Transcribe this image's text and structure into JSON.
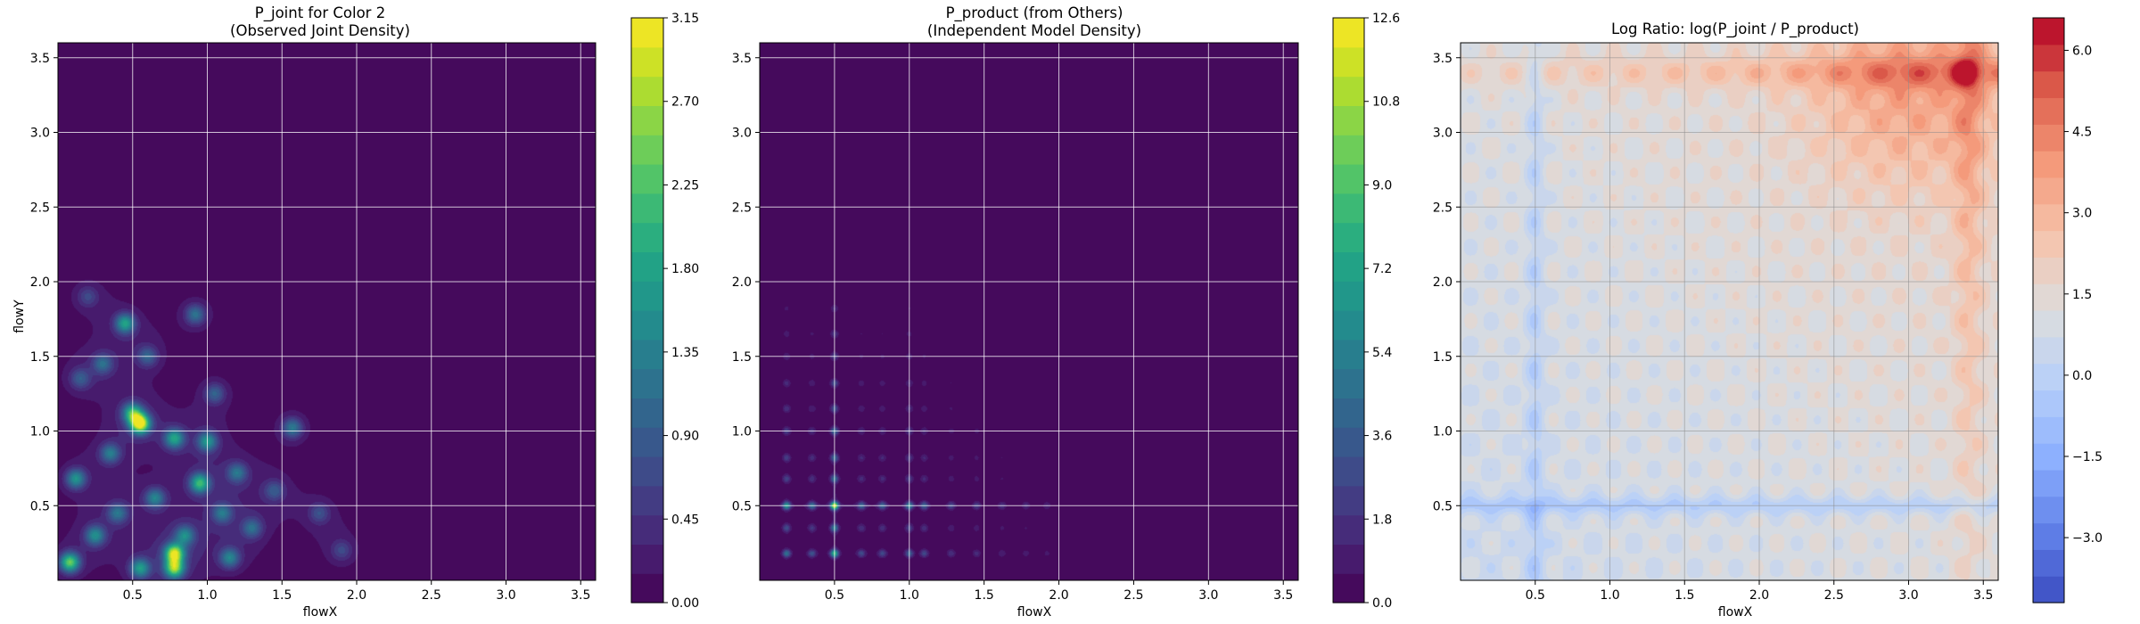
{
  "chart_data": [
    {
      "type": "heatmap",
      "title": [
        "P_joint for Color 2",
        "(Observed Joint Density)"
      ],
      "xlabel": "flowX",
      "ylabel": "flowY",
      "xlim": [
        0.0,
        3.6
      ],
      "ylim": [
        0.0,
        3.6
      ],
      "x_ticks": [
        0.5,
        1.0,
        1.5,
        2.0,
        2.5,
        3.0,
        3.5
      ],
      "y_ticks": [
        0.5,
        1.0,
        1.5,
        2.0,
        2.5,
        3.0,
        3.5
      ],
      "grid": true,
      "colormap": "viridis",
      "colorbar": {
        "min": 0.0,
        "max": 3.15,
        "ticks": [
          0.0,
          0.45,
          0.9,
          1.35,
          1.8,
          2.25,
          2.7,
          3.15
        ],
        "tick_labels": [
          "0.00",
          "0.45",
          "0.90",
          "1.35",
          "1.80",
          "2.25",
          "2.70",
          "3.15"
        ]
      },
      "peaks": [
        {
          "x": 0.55,
          "y": 1.05,
          "value": 3.1
        },
        {
          "x": 0.08,
          "y": 0.12,
          "value": 2.2
        },
        {
          "x": 0.78,
          "y": 0.18,
          "value": 2.6
        },
        {
          "x": 0.78,
          "y": 0.08,
          "value": 2.3
        },
        {
          "x": 0.5,
          "y": 1.12,
          "value": 1.8
        },
        {
          "x": 0.45,
          "y": 1.72,
          "value": 1.6
        },
        {
          "x": 0.95,
          "y": 0.65,
          "value": 1.9
        },
        {
          "x": 1.0,
          "y": 0.93,
          "value": 1.4
        },
        {
          "x": 0.78,
          "y": 0.95,
          "value": 1.6
        },
        {
          "x": 0.12,
          "y": 0.68,
          "value": 1.4
        },
        {
          "x": 0.25,
          "y": 0.3,
          "value": 1.3
        },
        {
          "x": 0.55,
          "y": 0.08,
          "value": 1.5
        },
        {
          "x": 1.2,
          "y": 0.72,
          "value": 1.0
        },
        {
          "x": 1.15,
          "y": 0.15,
          "value": 1.2
        },
        {
          "x": 0.92,
          "y": 1.78,
          "value": 1.0
        },
        {
          "x": 1.57,
          "y": 1.02,
          "value": 1.1
        },
        {
          "x": 1.3,
          "y": 0.35,
          "value": 0.9
        },
        {
          "x": 0.35,
          "y": 0.85,
          "value": 1.1
        },
        {
          "x": 0.65,
          "y": 0.55,
          "value": 1.2
        },
        {
          "x": 0.3,
          "y": 1.45,
          "value": 0.9
        },
        {
          "x": 1.05,
          "y": 1.25,
          "value": 0.8
        },
        {
          "x": 0.15,
          "y": 1.35,
          "value": 0.7
        },
        {
          "x": 1.45,
          "y": 0.6,
          "value": 0.7
        },
        {
          "x": 0.4,
          "y": 0.45,
          "value": 1.0
        },
        {
          "x": 0.85,
          "y": 0.3,
          "value": 1.2
        },
        {
          "x": 1.75,
          "y": 0.45,
          "value": 0.6
        },
        {
          "x": 0.2,
          "y": 1.9,
          "value": 0.5
        },
        {
          "x": 1.9,
          "y": 0.2,
          "value": 0.5
        },
        {
          "x": 0.6,
          "y": 1.5,
          "value": 0.8
        },
        {
          "x": 1.1,
          "y": 0.45,
          "value": 1.0
        }
      ]
    },
    {
      "type": "heatmap",
      "title": [
        "P_product (from Others)",
        "(Independent Model Density)"
      ],
      "xlabel": "flowX",
      "ylabel": "",
      "xlim": [
        0.0,
        3.6
      ],
      "ylim": [
        0.0,
        3.6
      ],
      "x_ticks": [
        0.5,
        1.0,
        1.5,
        2.0,
        2.5,
        3.0,
        3.5
      ],
      "y_ticks": [
        0.5,
        1.0,
        1.5,
        2.0,
        2.5,
        3.0,
        3.5
      ],
      "grid": true,
      "colormap": "viridis",
      "colorbar": {
        "min": 0.0,
        "max": 12.6,
        "ticks": [
          0.0,
          1.8,
          3.6,
          5.4,
          7.2,
          9.0,
          10.8,
          12.6
        ],
        "tick_labels": [
          "0.0",
          "1.8",
          "3.6",
          "5.4",
          "7.2",
          "9.0",
          "10.8",
          "12.6"
        ]
      },
      "marginal_x_peaks": [
        0.18,
        0.35,
        0.5,
        0.68,
        0.82,
        1.0,
        1.1,
        1.28,
        1.45,
        1.62,
        1.78,
        1.92
      ],
      "marginal_x_weights": [
        0.55,
        0.35,
        1.0,
        0.3,
        0.3,
        0.45,
        0.3,
        0.2,
        0.18,
        0.14,
        0.12,
        0.1
      ],
      "marginal_y_peaks": [
        0.18,
        0.35,
        0.5,
        0.68,
        0.82,
        1.0,
        1.15,
        1.32,
        1.5,
        1.65,
        1.82
      ],
      "marginal_y_weights": [
        0.6,
        0.35,
        0.9,
        0.3,
        0.28,
        0.3,
        0.22,
        0.2,
        0.16,
        0.13,
        0.1
      ],
      "max_value": 12.6
    },
    {
      "type": "heatmap",
      "title": [
        "Log Ratio: log(P_joint / P_product)"
      ],
      "xlabel": "flowX",
      "ylabel": "",
      "xlim": [
        0.0,
        3.6
      ],
      "ylim": [
        0.0,
        3.6
      ],
      "x_ticks": [
        0.5,
        1.0,
        1.5,
        2.0,
        2.5,
        3.0,
        3.5
      ],
      "y_ticks": [
        0.5,
        1.0,
        1.5,
        2.0,
        2.5,
        3.0,
        3.5
      ],
      "grid": true,
      "colormap": "coolwarm",
      "colorbar": {
        "min": -4.2,
        "max": 6.6,
        "ticks": [
          -3.0,
          -1.5,
          0.0,
          1.5,
          3.0,
          4.5,
          6.0
        ],
        "tick_labels": [
          "−3.0",
          "−1.5",
          "0.0",
          "1.5",
          "3.0",
          "4.5",
          "6.0"
        ]
      },
      "peak": {
        "x": 3.38,
        "y": 3.4,
        "value": 6.3
      }
    }
  ]
}
